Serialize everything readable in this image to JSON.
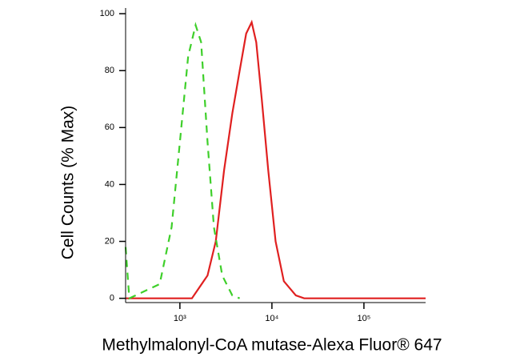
{
  "chart_data": {
    "type": "line",
    "xlabel": "Methylmalonyl-CoA mutase-Alexa Fluor® 647",
    "ylabel": "Cell Counts (% Max)",
    "xscale": "log",
    "xlim": [
      257,
      468000
    ],
    "ylim": [
      -1.5,
      102
    ],
    "xticks": [
      {
        "value": 1000,
        "label": "10³"
      },
      {
        "value": 10000,
        "label": "10⁴"
      },
      {
        "value": 100000,
        "label": "10⁵"
      }
    ],
    "yticks": [
      0,
      20,
      40,
      60,
      80,
      100
    ],
    "series": [
      {
        "color": "#e02020",
        "dash": false,
        "x": [
          257,
          1350,
          1995,
          2455,
          3020,
          3715,
          4467,
          5250,
          6025,
          6760,
          7760,
          9120,
          10960,
          13490,
          18200,
          22400,
          468000
        ],
        "values": [
          0,
          0,
          8,
          20,
          45,
          65,
          80,
          93,
          97,
          90,
          70,
          45,
          20,
          6,
          1,
          0,
          0
        ]
      },
      {
        "color": "#3ecf2a",
        "dash": true,
        "x": [
          257,
          282,
          603,
          813,
          1000,
          1230,
          1480,
          1700,
          1995,
          2345,
          2884,
          3715,
          4467
        ],
        "values": [
          18,
          0,
          5,
          25,
          55,
          85,
          96,
          90,
          55,
          25,
          8,
          1,
          0
        ]
      }
    ]
  }
}
